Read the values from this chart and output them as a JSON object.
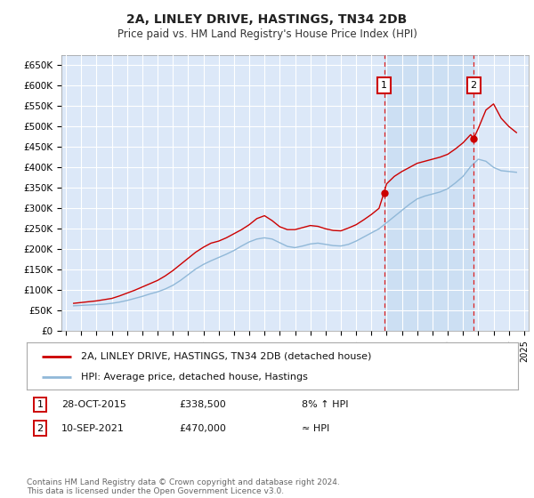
{
  "title": "2A, LINLEY DRIVE, HASTINGS, TN34 2DB",
  "subtitle": "Price paid vs. HM Land Registry's House Price Index (HPI)",
  "ylabel_ticks": [
    "£0",
    "£50K",
    "£100K",
    "£150K",
    "£200K",
    "£250K",
    "£300K",
    "£350K",
    "£400K",
    "£450K",
    "£500K",
    "£550K",
    "£600K",
    "£650K"
  ],
  "ytick_values": [
    0,
    50000,
    100000,
    150000,
    200000,
    250000,
    300000,
    350000,
    400000,
    450000,
    500000,
    550000,
    600000,
    650000
  ],
  "ylim": [
    0,
    675000
  ],
  "fig_bg": "#ffffff",
  "plot_bg": "#dce8f8",
  "grid_color": "#ffffff",
  "red_line_color": "#cc0000",
  "blue_line_color": "#90b8d8",
  "marker1_date": "28-OCT-2015",
  "marker1_value": 338500,
  "marker1_label": "8% ↑ HPI",
  "marker2_date": "10-SEP-2021",
  "marker2_value": 470000,
  "marker2_label": "≈ HPI",
  "legend_line1": "2A, LINLEY DRIVE, HASTINGS, TN34 2DB (detached house)",
  "legend_line2": "HPI: Average price, detached house, Hastings",
  "footer": "Contains HM Land Registry data © Crown copyright and database right 2024.\nThis data is licensed under the Open Government Licence v3.0.",
  "marker1_x": 2015.83,
  "marker2_x": 2021.69,
  "hpi_x": [
    1995.5,
    1996.0,
    1996.5,
    1997.0,
    1997.5,
    1998.0,
    1998.5,
    1999.0,
    1999.5,
    2000.0,
    2000.5,
    2001.0,
    2001.5,
    2002.0,
    2002.5,
    2003.0,
    2003.5,
    2004.0,
    2004.5,
    2005.0,
    2005.5,
    2006.0,
    2006.5,
    2007.0,
    2007.5,
    2008.0,
    2008.5,
    2009.0,
    2009.5,
    2010.0,
    2010.5,
    2011.0,
    2011.5,
    2012.0,
    2012.5,
    2013.0,
    2013.5,
    2014.0,
    2014.5,
    2015.0,
    2015.5,
    2016.0,
    2016.5,
    2017.0,
    2017.5,
    2018.0,
    2018.5,
    2019.0,
    2019.5,
    2020.0,
    2020.5,
    2021.0,
    2021.5,
    2022.0,
    2022.5,
    2023.0,
    2023.5,
    2024.0,
    2024.5
  ],
  "hpi_y": [
    62000,
    63000,
    64000,
    65000,
    66000,
    68000,
    71000,
    75000,
    80000,
    85000,
    91000,
    96000,
    103000,
    112000,
    124000,
    138000,
    152000,
    163000,
    172000,
    180000,
    188000,
    197000,
    208000,
    218000,
    225000,
    228000,
    225000,
    216000,
    207000,
    204000,
    208000,
    213000,
    215000,
    212000,
    209000,
    208000,
    212000,
    220000,
    230000,
    240000,
    250000,
    265000,
    280000,
    295000,
    310000,
    323000,
    330000,
    335000,
    340000,
    348000,
    362000,
    378000,
    402000,
    420000,
    415000,
    400000,
    392000,
    390000,
    388000
  ],
  "price_x": [
    1995.5,
    1996.0,
    1996.5,
    1997.0,
    1997.5,
    1998.0,
    1998.5,
    1999.0,
    1999.5,
    2000.0,
    2000.5,
    2001.0,
    2001.5,
    2002.0,
    2002.5,
    2003.0,
    2003.5,
    2004.0,
    2004.5,
    2005.0,
    2005.5,
    2006.0,
    2006.5,
    2007.0,
    2007.5,
    2008.0,
    2008.5,
    2009.0,
    2009.5,
    2010.0,
    2010.5,
    2011.0,
    2011.5,
    2012.0,
    2012.5,
    2013.0,
    2013.5,
    2014.0,
    2014.5,
    2015.0,
    2015.5,
    2015.83,
    2016.0,
    2016.5,
    2017.0,
    2017.5,
    2018.0,
    2018.5,
    2019.0,
    2019.5,
    2020.0,
    2020.5,
    2021.0,
    2021.5,
    2021.69,
    2022.0,
    2022.5,
    2023.0,
    2023.5,
    2024.0,
    2024.5
  ],
  "price_y": [
    68000,
    70000,
    72000,
    74000,
    77000,
    80000,
    86000,
    93000,
    100000,
    108000,
    116000,
    124000,
    135000,
    148000,
    163000,
    178000,
    193000,
    205000,
    215000,
    220000,
    228000,
    238000,
    248000,
    260000,
    275000,
    282000,
    270000,
    255000,
    248000,
    248000,
    253000,
    258000,
    256000,
    250000,
    246000,
    245000,
    252000,
    260000,
    272000,
    285000,
    300000,
    338500,
    360000,
    378000,
    390000,
    400000,
    410000,
    415000,
    420000,
    425000,
    432000,
    445000,
    460000,
    480000,
    470000,
    495000,
    540000,
    555000,
    520000,
    500000,
    485000
  ]
}
